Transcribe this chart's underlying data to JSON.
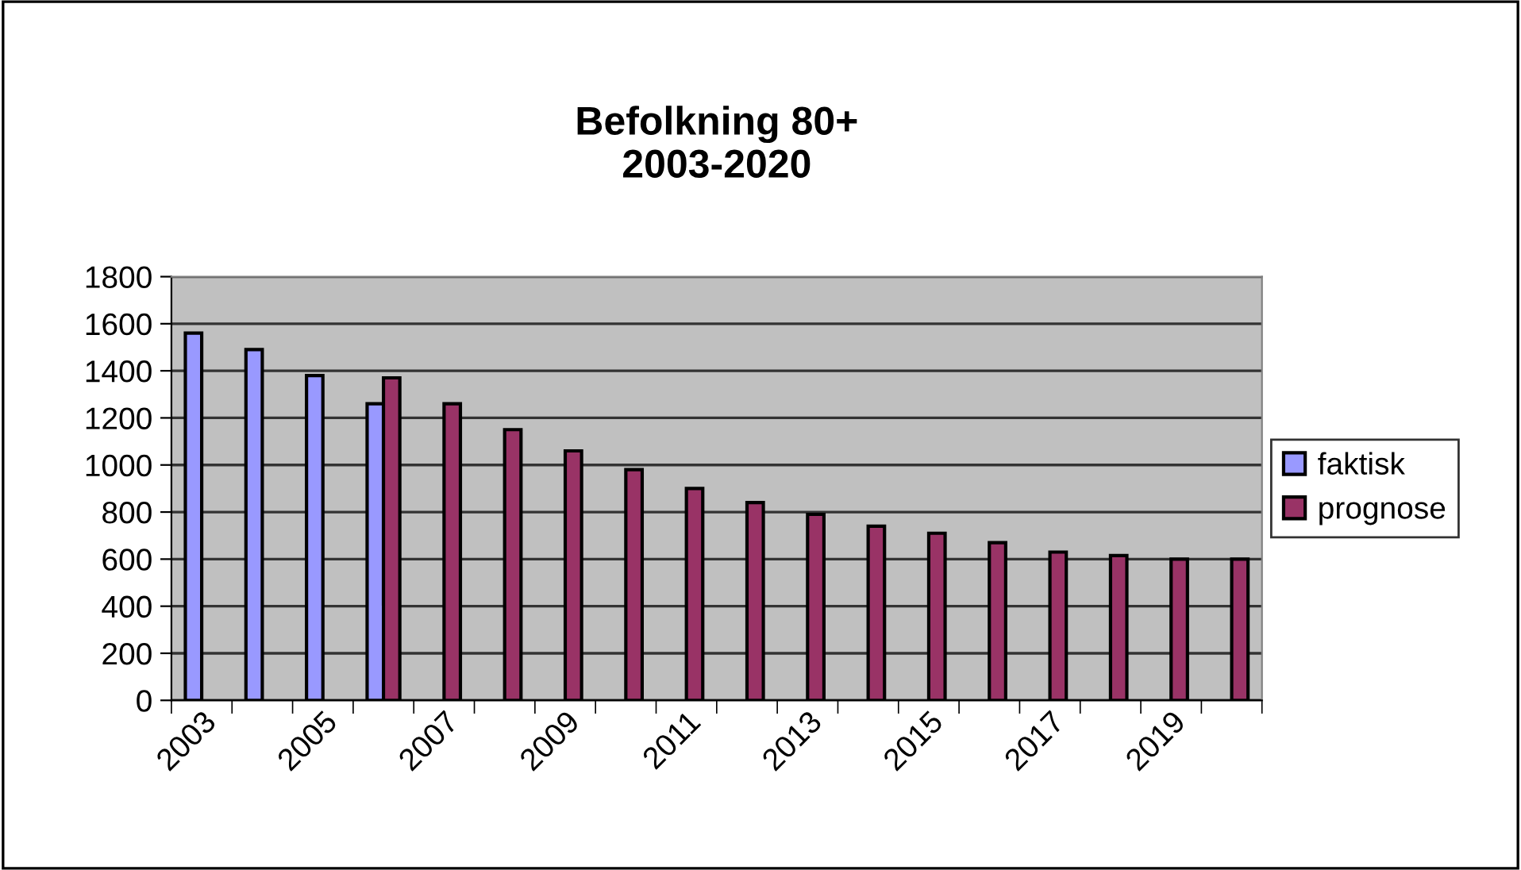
{
  "chart_data": {
    "type": "bar",
    "title": "Befolkning 80+\n2003-2020",
    "categories": [
      "2003",
      null,
      "2005",
      null,
      "2007",
      null,
      "2009",
      null,
      "2011",
      null,
      "2013",
      null,
      "2015",
      null,
      "2017",
      null,
      "2019",
      null
    ],
    "series": [
      {
        "name": "faktisk",
        "color": "#9999ff",
        "values": [
          1560,
          1490,
          1380,
          1260,
          null,
          null,
          null,
          null,
          null,
          null,
          null,
          null,
          null,
          null,
          null,
          null,
          null,
          null
        ]
      },
      {
        "name": "prognose",
        "color": "#993366",
        "values": [
          null,
          null,
          null,
          1370,
          1260,
          1150,
          1060,
          980,
          900,
          840,
          790,
          740,
          710,
          670,
          630,
          615,
          600,
          600
        ]
      }
    ],
    "ylim": [
      0,
      1800
    ],
    "yticks": [
      0,
      200,
      400,
      600,
      800,
      1000,
      1200,
      1400,
      1600,
      1800
    ],
    "grid": "y",
    "legend": "right"
  }
}
